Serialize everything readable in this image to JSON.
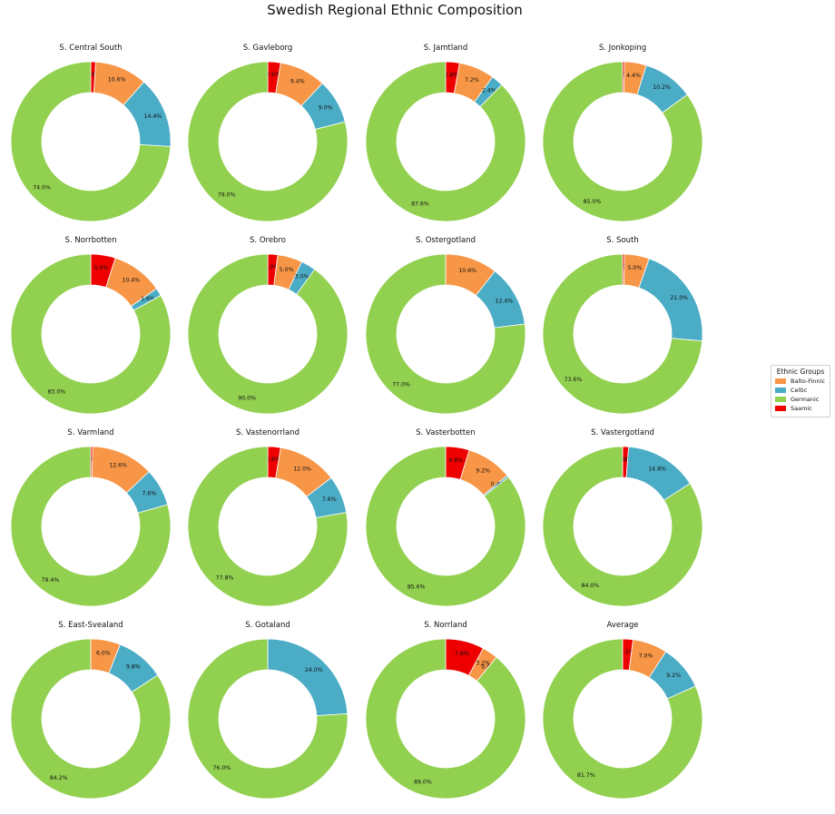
{
  "colors": {
    "Balto-Finnic": "#f79646",
    "Celtic": "#4bacc6",
    "Germanic": "#92d050",
    "Saamic": "#ee0000"
  },
  "chart_data": {
    "type": "pie",
    "variant": "donut-grid",
    "title": "Swedish Regional Ethnic Composition",
    "legend": {
      "title": "Ethnic Groups",
      "entries": [
        "Balto-Finnic",
        "Celtic",
        "Germanic",
        "Saamic"
      ],
      "placement": "right"
    },
    "subplots": [
      {
        "title": "S. Central South",
        "slices": [
          {
            "label": "Saamic",
            "value": 1.0
          },
          {
            "label": "Balto-Finnic",
            "value": 10.6
          },
          {
            "label": "Celtic",
            "value": 14.4
          },
          {
            "label": "Germanic",
            "value": 74.0
          }
        ]
      },
      {
        "title": "S. Gavleborg",
        "slices": [
          {
            "label": "Saamic",
            "value": 2.6
          },
          {
            "label": "Balto-Finnic",
            "value": 9.4
          },
          {
            "label": "Celtic",
            "value": 9.0
          },
          {
            "label": "Germanic",
            "value": 79.0
          }
        ]
      },
      {
        "title": "S. Jamtland",
        "slices": [
          {
            "label": "Saamic",
            "value": 2.8
          },
          {
            "label": "Balto-Finnic",
            "value": 7.2
          },
          {
            "label": "Celtic",
            "value": 2.4
          },
          {
            "label": "Germanic",
            "value": 87.6
          }
        ]
      },
      {
        "title": "S. Jonkoping",
        "slices": [
          {
            "label": "Saamic",
            "value": 0.4
          },
          {
            "label": "Balto-Finnic",
            "value": 4.4
          },
          {
            "label": "Celtic",
            "value": 10.2
          },
          {
            "label": "Germanic",
            "value": 85.0
          }
        ]
      },
      {
        "title": "S. Norrbotten",
        "slices": [
          {
            "label": "Saamic",
            "value": 5.0
          },
          {
            "label": "Balto-Finnic",
            "value": 10.4
          },
          {
            "label": "Celtic",
            "value": 1.6
          },
          {
            "label": "Germanic",
            "value": 83.0
          }
        ]
      },
      {
        "title": "S. Orebro",
        "slices": [
          {
            "label": "Saamic",
            "value": 2.0
          },
          {
            "label": "Balto-Finnic",
            "value": 5.0
          },
          {
            "label": "Celtic",
            "value": 3.0
          },
          {
            "label": "Germanic",
            "value": 90.0
          }
        ]
      },
      {
        "title": "S. Ostergotland",
        "slices": [
          {
            "label": "Saamic",
            "value": 0.0
          },
          {
            "label": "Balto-Finnic",
            "value": 10.6
          },
          {
            "label": "Celtic",
            "value": 12.4
          },
          {
            "label": "Germanic",
            "value": 77.0
          }
        ]
      },
      {
        "title": "S. South",
        "slices": [
          {
            "label": "Saamic",
            "value": 0.4
          },
          {
            "label": "Balto-Finnic",
            "value": 5.0
          },
          {
            "label": "Celtic",
            "value": 21.0
          },
          {
            "label": "Germanic",
            "value": 73.6
          }
        ]
      },
      {
        "title": "S. Varmland",
        "slices": [
          {
            "label": "Saamic",
            "value": 0.4
          },
          {
            "label": "Balto-Finnic",
            "value": 12.6
          },
          {
            "label": "Celtic",
            "value": 7.6
          },
          {
            "label": "Germanic",
            "value": 79.4
          }
        ]
      },
      {
        "title": "S. Vastenorrland",
        "slices": [
          {
            "label": "Saamic",
            "value": 2.6
          },
          {
            "label": "Balto-Finnic",
            "value": 12.0
          },
          {
            "label": "Celtic",
            "value": 7.6
          },
          {
            "label": "Germanic",
            "value": 77.8
          }
        ]
      },
      {
        "title": "S. Vasterbotten",
        "slices": [
          {
            "label": "Saamic",
            "value": 4.8
          },
          {
            "label": "Balto-Finnic",
            "value": 9.2
          },
          {
            "label": "Celtic",
            "value": 0.4
          },
          {
            "label": "Germanic",
            "value": 85.6
          }
        ]
      },
      {
        "title": "S. Vastergotland",
        "slices": [
          {
            "label": "Saamic",
            "value": 1.2
          },
          {
            "label": "Balto-Finnic",
            "value": 0.0
          },
          {
            "label": "Celtic",
            "value": 14.8
          },
          {
            "label": "Germanic",
            "value": 84.0
          }
        ]
      },
      {
        "title": "S. East-Svealand",
        "slices": [
          {
            "label": "Saamic",
            "value": 0.0
          },
          {
            "label": "Balto-Finnic",
            "value": 6.0
          },
          {
            "label": "Celtic",
            "value": 9.8
          },
          {
            "label": "Germanic",
            "value": 84.2
          }
        ]
      },
      {
        "title": "S. Gotaland",
        "slices": [
          {
            "label": "Saamic",
            "value": 0.0
          },
          {
            "label": "Balto-Finnic",
            "value": 0.0
          },
          {
            "label": "Celtic",
            "value": 24.0
          },
          {
            "label": "Germanic",
            "value": 76.0
          }
        ]
      },
      {
        "title": "S. Norrland",
        "slices": [
          {
            "label": "Saamic",
            "value": 7.8
          },
          {
            "label": "Balto-Finnic",
            "value": 3.2
          },
          {
            "label": "Celtic",
            "value": 0.0
          },
          {
            "label": "Germanic",
            "value": 89.0
          }
        ]
      },
      {
        "title": "Average",
        "slices": [
          {
            "label": "Saamic",
            "value": 2.1
          },
          {
            "label": "Balto-Finnic",
            "value": 7.0
          },
          {
            "label": "Celtic",
            "value": 9.2
          },
          {
            "label": "Germanic",
            "value": 81.7
          }
        ]
      }
    ]
  }
}
